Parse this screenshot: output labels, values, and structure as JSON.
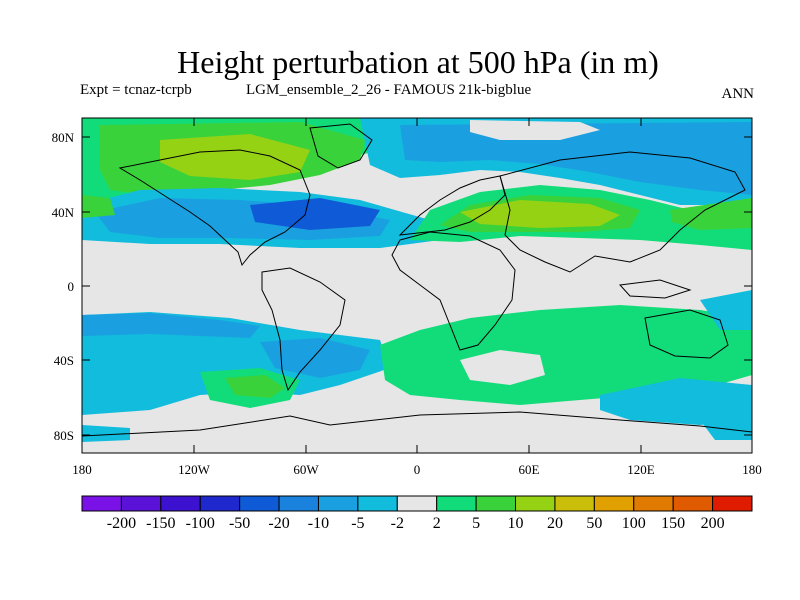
{
  "title": "Height perturbation at 500 hPa (in m)",
  "expt_label": "Expt = tcnaz-tcrpb",
  "experiment": "LGM_ensemble_2_26 - FAMOUS 21k-bigblue",
  "season": "ANN",
  "axes": {
    "lat_ticks": [
      "80N",
      "40N",
      "0",
      "40S",
      "80S"
    ],
    "lon_ticks": [
      "180",
      "120W",
      "60W",
      "0",
      "60E",
      "120E",
      "180"
    ]
  },
  "colorbar": {
    "labels": [
      "-200",
      "-150",
      "-100",
      "-50",
      "-20",
      "-10",
      "-5",
      "-2",
      "2",
      "5",
      "10",
      "20",
      "50",
      "100",
      "150",
      "200"
    ],
    "colors": [
      "#7a12e8",
      "#5a12d8",
      "#3c12d0",
      "#1f28cc",
      "#0f5ad6",
      "#1a82dc",
      "#1aa0e0",
      "#12bcdc",
      "#e6e6e6",
      "#12dc7a",
      "#3ad23a",
      "#96d214",
      "#cabe0a",
      "#e0a000",
      "#e07a00",
      "#e05a00",
      "#e01c00"
    ]
  },
  "colors": {
    "neg_light": "#12bcdc",
    "neg_mid": "#1aa0e0",
    "neg_strong": "#0f5ad6",
    "neutral": "#e6e6e6",
    "pos_light": "#12dc7a",
    "pos_mid": "#3ad23a",
    "pos_strong": "#96d214"
  }
}
